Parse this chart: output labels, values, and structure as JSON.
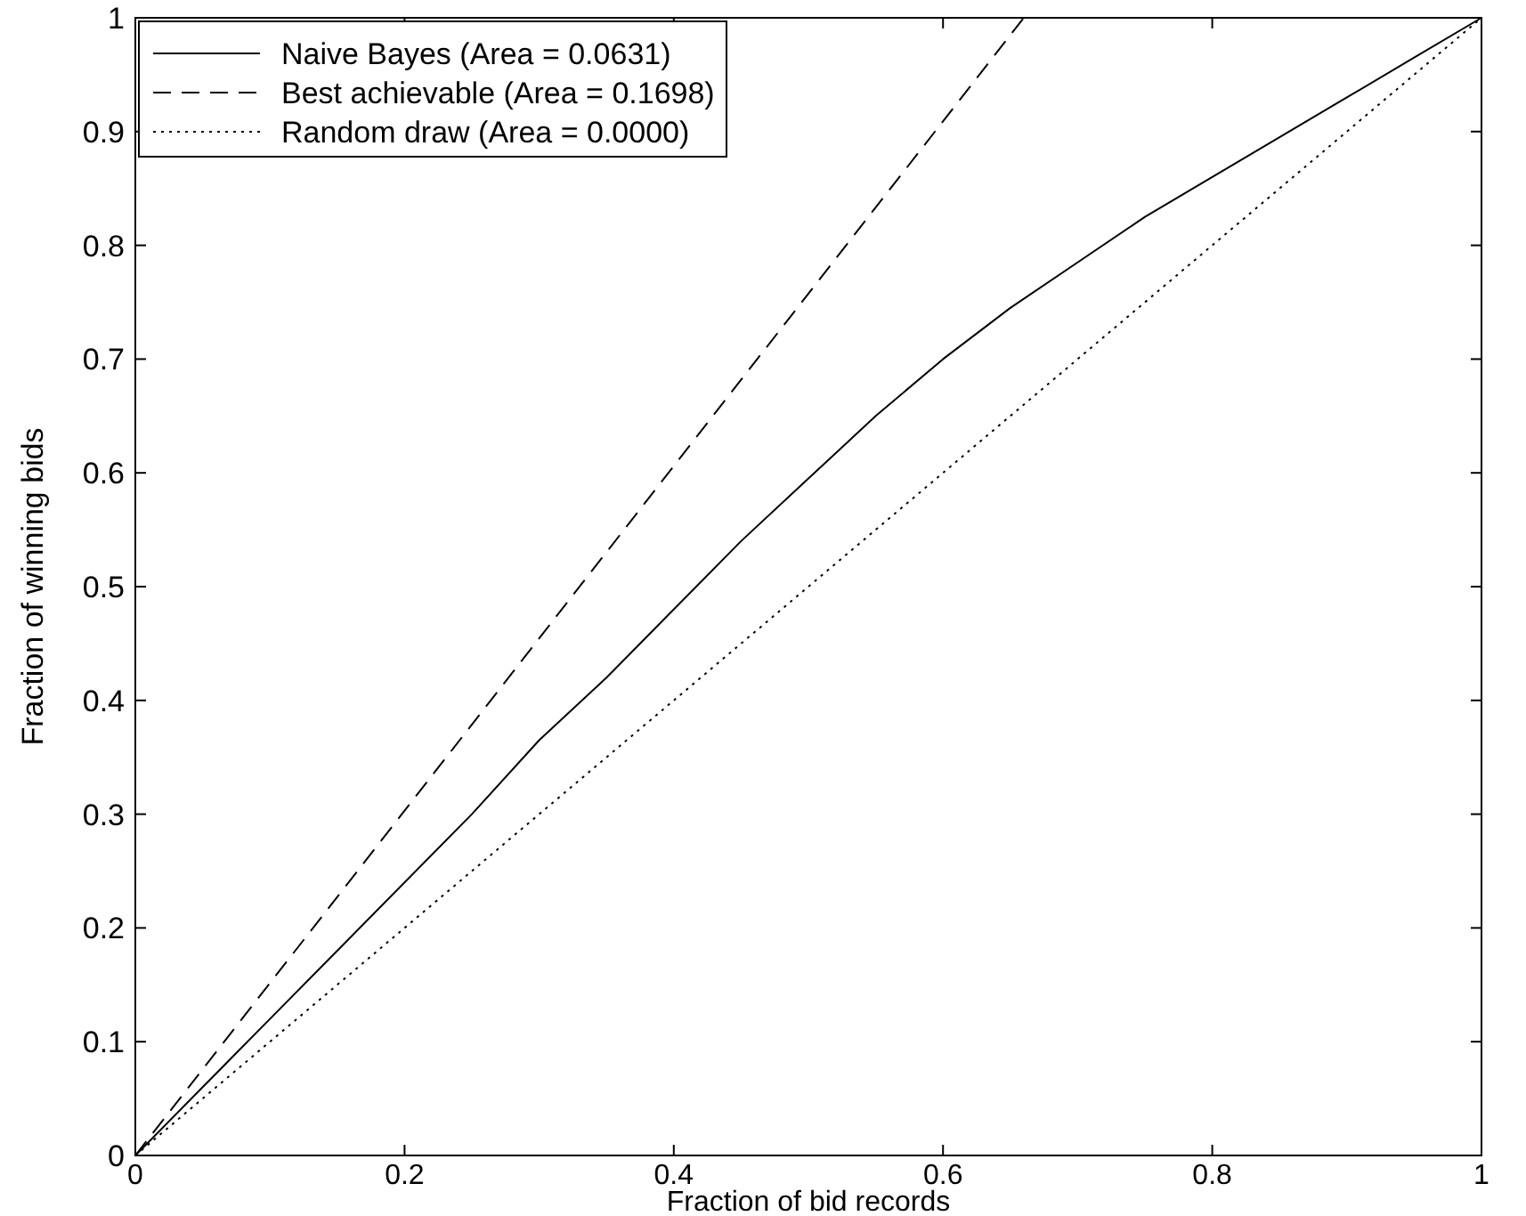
{
  "chart_data": {
    "type": "line",
    "xlabel": "Fraction of bid records",
    "ylabel": "Fraction of winning bids",
    "xlim": [
      0,
      1
    ],
    "ylim": [
      0,
      1
    ],
    "xticks": [
      0,
      0.2,
      0.4,
      0.6,
      0.8,
      1
    ],
    "yticks": [
      0,
      0.1,
      0.2,
      0.3,
      0.4,
      0.5,
      0.6,
      0.7,
      0.8,
      0.9,
      1
    ],
    "grid": false,
    "legend": "top left",
    "series": [
      {
        "name": "Naive Bayes (Area = 0.0631)",
        "color": "#000000",
        "line_style": "solid",
        "x": [
          0,
          0.05,
          0.1,
          0.15,
          0.2,
          0.25,
          0.3,
          0.35,
          0.4,
          0.45,
          0.5,
          0.55,
          0.6,
          0.65,
          0.7,
          0.75,
          0.8,
          0.85,
          0.9,
          0.95,
          1
        ],
        "values": [
          0,
          0.06,
          0.12,
          0.18,
          0.24,
          0.3,
          0.365,
          0.42,
          0.48,
          0.54,
          0.595,
          0.65,
          0.7,
          0.745,
          0.785,
          0.825,
          0.86,
          0.895,
          0.93,
          0.965,
          1
        ]
      },
      {
        "name": "Best achievable (Area = 0.1698)",
        "color": "#000000",
        "line_style": "dashed",
        "x": [
          0,
          0.66
        ],
        "values": [
          0,
          1
        ]
      },
      {
        "name": "Random draw (Area = 0.0000)",
        "color": "#000000",
        "line_style": "dotted",
        "x": [
          0,
          1
        ],
        "values": [
          0,
          1
        ]
      }
    ]
  }
}
